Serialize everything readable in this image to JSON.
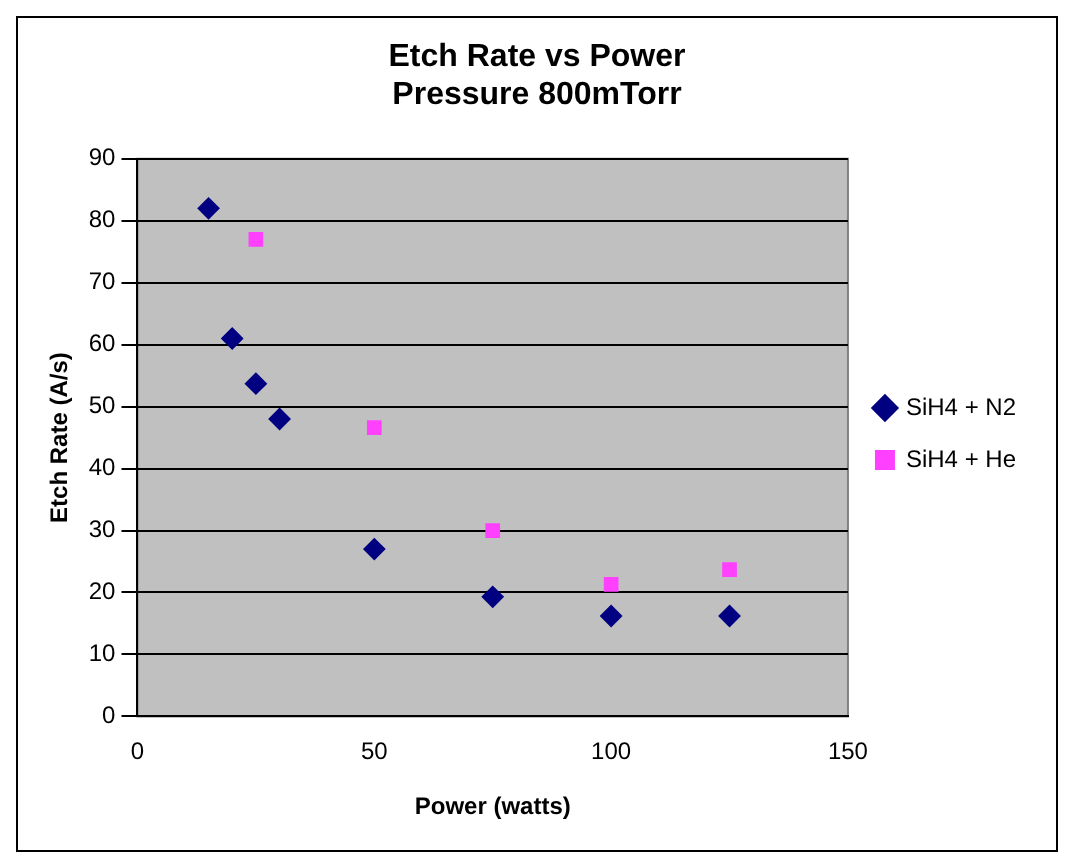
{
  "chart_data": {
    "type": "scatter",
    "title": "Etch Rate vs Power\nPressure 800mTorr",
    "xlabel": "Power (watts)",
    "ylabel": "Etch Rate (A/s)",
    "series": [
      {
        "name": "SiH4 + N2",
        "color": "#000080",
        "marker": "diamond",
        "x": [
          15,
          20,
          25,
          30,
          50,
          75,
          100,
          125
        ],
        "values": [
          82,
          61,
          53.7,
          48,
          27,
          19.3,
          16.2,
          16.2
        ]
      },
      {
        "name": "SiH4 + He",
        "color": "#ff40ff",
        "marker": "square",
        "x": [
          25,
          50,
          75,
          100,
          125
        ],
        "values": [
          77,
          46.6,
          30,
          21.3,
          23.7
        ]
      }
    ],
    "xlim": [
      0,
      150
    ],
    "xticks": [
      0,
      50,
      100,
      150
    ],
    "ylim": [
      0,
      90
    ],
    "yticks": [
      0,
      10,
      20,
      30,
      40,
      50,
      60,
      70,
      80,
      90
    ],
    "grid": "y",
    "legend": "right"
  }
}
